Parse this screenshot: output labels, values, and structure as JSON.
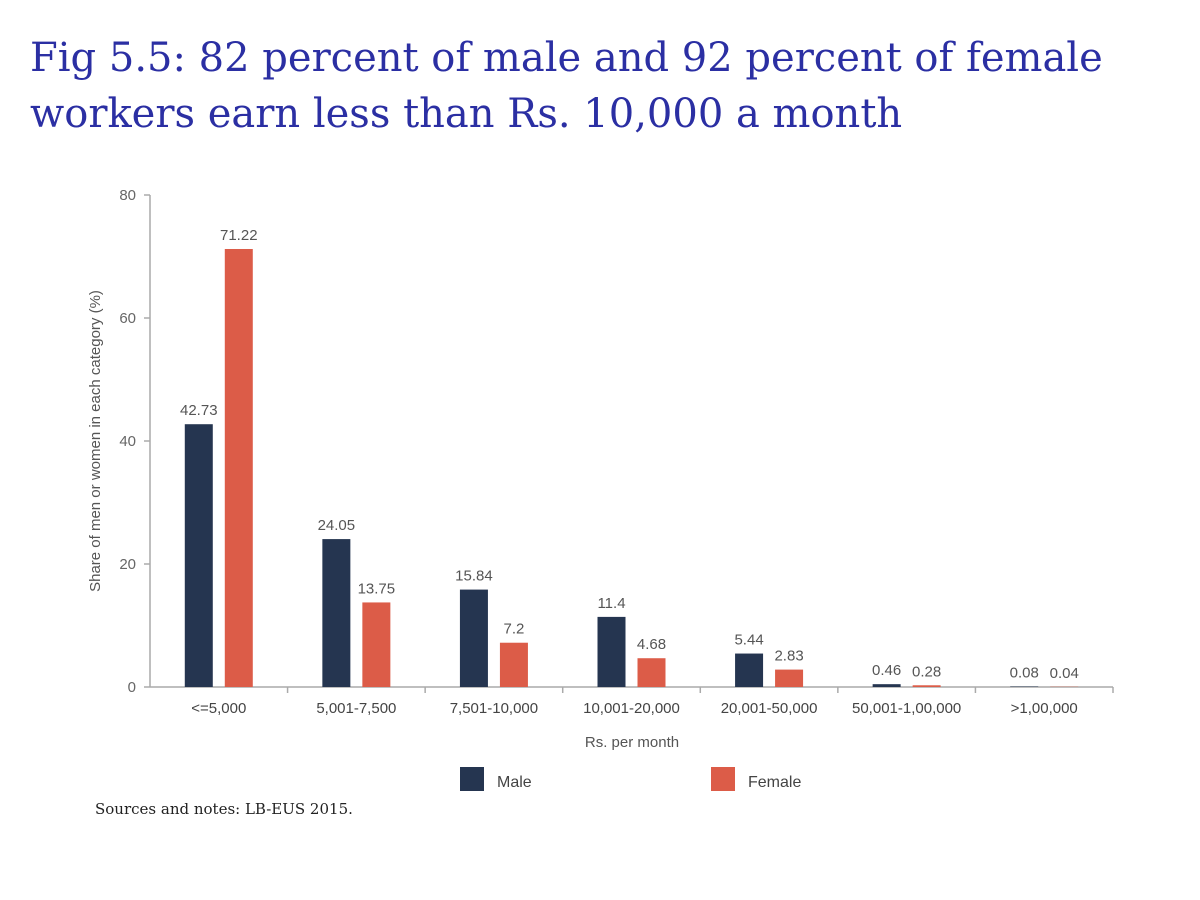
{
  "chart_data": {
    "type": "bar",
    "title_lines": [
      "Fig 5.5: 82 percent of male and 92 percent of female",
      "workers earn less than Rs. 10,000 a month"
    ],
    "categories": [
      "<=5,000",
      "5,001-7,500",
      "7,501-10,000",
      "10,001-20,000",
      "20,001-50,000",
      "50,001-1,00,000",
      ">1,00,000"
    ],
    "series": [
      {
        "name": "Male",
        "color": "#253550",
        "values": [
          42.73,
          24.05,
          15.84,
          11.4,
          5.44,
          0.46,
          0.08
        ],
        "labels": [
          "42.73",
          "24.05",
          "15.84",
          "11.4",
          "5.44",
          "0.46",
          "0.08"
        ]
      },
      {
        "name": "Female",
        "color": "#dc5c48",
        "values": [
          71.22,
          13.75,
          7.2,
          4.68,
          2.83,
          0.28,
          0.04
        ],
        "labels": [
          "71.22",
          "13.75",
          "7.2",
          "4.68",
          "2.83",
          "0.28",
          "0.04"
        ]
      }
    ],
    "xlabel": "Rs. per month",
    "ylabel": "Share of men or women in each category (%)",
    "ylim": [
      0,
      80
    ],
    "yticks": [
      0,
      20,
      40,
      60,
      80
    ],
    "legend_position": "bottom"
  },
  "notes": "Sources and notes: LB-EUS 2015."
}
